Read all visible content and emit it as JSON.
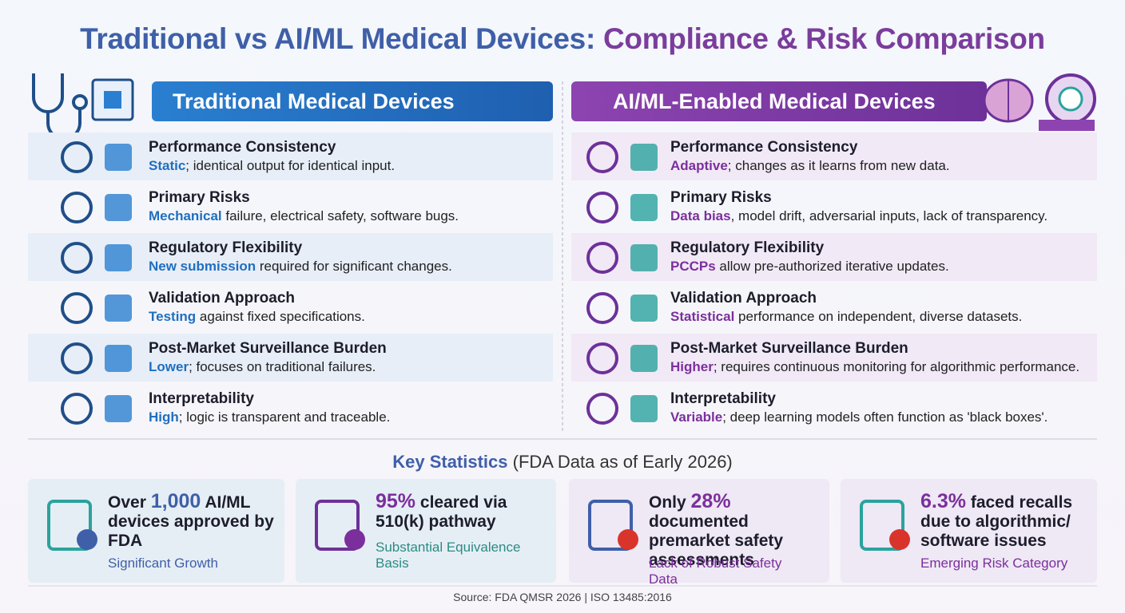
{
  "title": {
    "part1": "Traditional vs AI/ML Medical Devices:",
    "part2": "Compliance & Risk Comparison"
  },
  "columns": [
    {
      "heading": "Traditional Medical Devices",
      "rows": [
        {
          "label": "Performance Consistency",
          "highlight": "Static",
          "text": "; identical output for identical input."
        },
        {
          "label": "Primary Risks",
          "highlight": "Mechanical",
          "text": " failure, electrical safety, software bugs."
        },
        {
          "label": "Regulatory Flexibility",
          "highlight": "New submission",
          "text": " required for significant changes."
        },
        {
          "label": "Validation Approach",
          "highlight": "Testing",
          "text": " against fixed specifications."
        },
        {
          "label": "Post-Market Surveillance Burden",
          "highlight": "Lower",
          "text": "; focuses on traditional failures."
        },
        {
          "label": "Interpretability",
          "highlight": "High",
          "text": "; logic is transparent and traceable."
        }
      ]
    },
    {
      "heading": "AI/ML-Enabled Medical Devices",
      "rows": [
        {
          "label": "Performance Consistency",
          "highlight": "Adaptive",
          "text": "; changes as it learns from new data."
        },
        {
          "label": "Primary Risks",
          "highlight": "Data bias",
          "text": ", model drift, adversarial inputs, lack of transparency."
        },
        {
          "label": "Regulatory Flexibility",
          "highlight": "PCCPs",
          "text": " allow pre-authorized iterative updates."
        },
        {
          "label": "Validation Approach",
          "highlight": "Statistical",
          "text": " performance on independent, diverse datasets."
        },
        {
          "label": "Post-Market Surveillance Burden",
          "highlight": "Higher",
          "text": "; requires continuous monitoring for algorithmic performance."
        },
        {
          "label": "Interpretability",
          "highlight": "Variable",
          "text": "; deep learning models often function as 'black boxes'."
        }
      ]
    }
  ],
  "statistics": {
    "heading": "Key Statistics",
    "subheading": "(FDA Data as of Early 2026)",
    "cards": [
      {
        "prefix": "Over",
        "figure": "1,000",
        "suffix": "AI/ML devices approved by FDA",
        "caption": "Significant Growth"
      },
      {
        "figure": "95%",
        "suffix": "cleared via 510(k) pathway",
        "caption": "Substantial Equivalence Basis"
      },
      {
        "prefix": "Only",
        "figure": "28%",
        "suffix": "documented premarket safety assessments",
        "caption": "Lack of Robust Safety Data"
      },
      {
        "figure": "6.3%",
        "suffix": "faced recalls due to algorithmic/ software issues",
        "caption": "Emerging Risk Category"
      }
    ]
  },
  "source": "Source: FDA QMSR 2026 | ISO 13485:2016"
}
